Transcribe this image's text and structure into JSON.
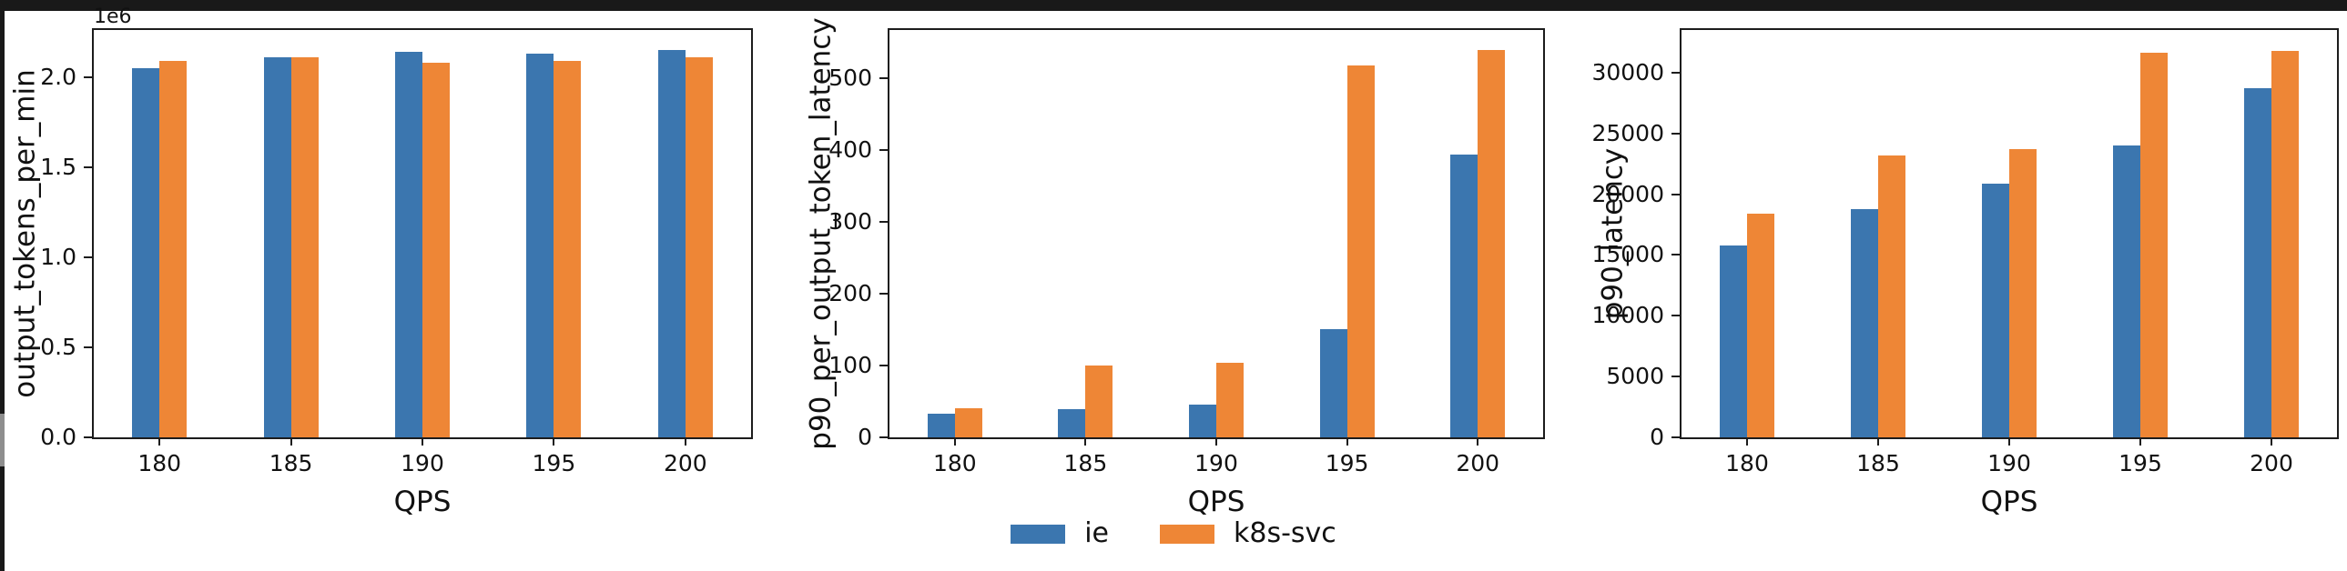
{
  "window": {
    "top_bar_color": "#191919",
    "left_edge_color": "#191919",
    "background_color": "#ffffff"
  },
  "colors": {
    "ie": "#3b76af",
    "k8s_svc": "#ee8636",
    "axis": "#1c1c1c",
    "text": "#111111"
  },
  "legend": {
    "items": [
      {
        "label": "ie",
        "color": "#3b76af"
      },
      {
        "label": "k8s-svc",
        "color": "#ee8636"
      }
    ],
    "position": "bottom-center"
  },
  "chart_data": [
    {
      "type": "bar",
      "title": "",
      "xlabel": "QPS",
      "ylabel": "output_tokens_per_min",
      "y_offset_text": "1e6",
      "categories": [
        "180",
        "185",
        "190",
        "195",
        "200"
      ],
      "series": [
        {
          "name": "ie",
          "color": "#3b76af",
          "values": [
            2050000,
            2110000,
            2140000,
            2130000,
            2150000
          ]
        },
        {
          "name": "k8s-svc",
          "color": "#ee8636",
          "values": [
            2090000,
            2110000,
            2080000,
            2090000,
            2110000
          ]
        }
      ],
      "ylim": [
        0,
        2260000
      ],
      "yticks": [
        0,
        500000,
        1000000,
        1500000,
        2000000
      ],
      "ytick_labels": [
        "0.0",
        "0.5",
        "1.0",
        "1.5",
        "2.0"
      ],
      "grid": false,
      "legend_position": "shared-figure-bottom"
    },
    {
      "type": "bar",
      "title": "",
      "xlabel": "QPS",
      "ylabel": "p90_per_output_token_latency",
      "y_offset_text": "",
      "categories": [
        "180",
        "185",
        "190",
        "195",
        "200"
      ],
      "series": [
        {
          "name": "ie",
          "color": "#3b76af",
          "values": [
            33,
            39,
            46,
            151,
            393
          ]
        },
        {
          "name": "k8s-svc",
          "color": "#ee8636",
          "values": [
            41,
            100,
            104,
            518,
            539
          ]
        }
      ],
      "ylim": [
        0,
        567
      ],
      "yticks": [
        0,
        100,
        200,
        300,
        400,
        500
      ],
      "ytick_labels": [
        "0",
        "100",
        "200",
        "300",
        "400",
        "500"
      ],
      "grid": false,
      "legend_position": "shared-figure-bottom"
    },
    {
      "type": "bar",
      "title": "",
      "xlabel": "QPS",
      "ylabel": "p90_latency",
      "y_offset_text": "",
      "categories": [
        "180",
        "185",
        "190",
        "195",
        "200"
      ],
      "series": [
        {
          "name": "ie",
          "color": "#3b76af",
          "values": [
            15800,
            18800,
            20900,
            24000,
            28700
          ]
        },
        {
          "name": "k8s-svc",
          "color": "#ee8636",
          "values": [
            18400,
            23200,
            23700,
            31600,
            31800
          ]
        }
      ],
      "ylim": [
        0,
        33500
      ],
      "yticks": [
        0,
        5000,
        10000,
        15000,
        20000,
        25000,
        30000
      ],
      "ytick_labels": [
        "0",
        "5000",
        "10000",
        "15000",
        "20000",
        "25000",
        "30000"
      ],
      "grid": false,
      "legend_position": "shared-figure-bottom"
    }
  ]
}
